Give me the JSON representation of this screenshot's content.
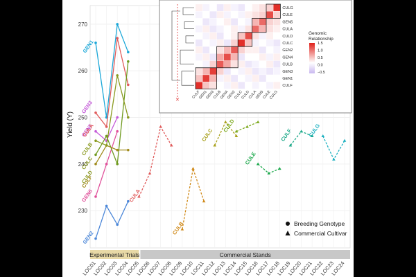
{
  "chart_data": [
    {
      "type": "line",
      "ylabel": "Yield (Y)",
      "ylim": [
        222,
        274
      ],
      "yticks": [
        230,
        240,
        250,
        260,
        270
      ],
      "locations": [
        "LOC01",
        "LOC02",
        "LOC03",
        "LOC04",
        "LOC05",
        "LOC06",
        "LOC07",
        "LOC08",
        "LOC09",
        "LOC10",
        "LOC11",
        "LOC12",
        "LOC13",
        "LOC14",
        "LOC15",
        "LOC16",
        "LOC17",
        "LOC18",
        "LOC19",
        "LOC20",
        "LOC21",
        "LOC22",
        "LOC23",
        "LOC24"
      ],
      "bands": [
        {
          "label": "Experimental Trials",
          "from": "LOC01",
          "to": "LOC05",
          "color": "#e8d9a6"
        },
        {
          "label": "Commercial Stands",
          "from": "LOC05",
          "to": "LOC24",
          "color": "#c8c8c8"
        }
      ],
      "legend": {
        "position": "bottom-right",
        "items": [
          {
            "shape": "circle",
            "label": "Breeding Genotype"
          },
          {
            "shape": "triangle",
            "label": "Commercial Cultivar"
          }
        ]
      },
      "series": [
        {
          "name": "GEN1",
          "kind": "genotype",
          "color": "#1aa7d8",
          "points": [
            [
              1,
              266
            ],
            [
              2,
              250
            ],
            [
              3,
              270
            ],
            [
              4,
              264
            ]
          ]
        },
        {
          "name": "GEN3",
          "kind": "genotype",
          "color": "#e05a5a",
          "points": [
            [
              1,
              251
            ],
            [
              2,
              248
            ],
            [
              3,
              267
            ],
            [
              4,
              257
            ]
          ]
        },
        {
          "name": "GEN5",
          "kind": "genotype",
          "color": "#c45ad8",
          "points": [
            [
              1,
              247
            ],
            [
              2,
              245
            ],
            [
              3,
              250
            ]
          ]
        },
        {
          "name": "GEN6",
          "kind": "genotype",
          "color": "#e0509a",
          "points": [
            [
              1,
              233
            ],
            [
              2,
              240
            ],
            [
              3,
              247
            ]
          ]
        },
        {
          "name": "CULB",
          "kind": "genotype",
          "color": "#6f9a1f",
          "points": [
            [
              1,
              242
            ],
            [
              2,
              246
            ],
            [
              3,
              240
            ],
            [
              4,
              262
            ]
          ]
        },
        {
          "name": "CULF",
          "kind": "genotype",
          "color": "#a08a1a",
          "points": [
            [
              1,
              240
            ],
            [
              2,
              244
            ],
            [
              3,
              243
            ],
            [
              4,
              243
            ]
          ]
        },
        {
          "name": "CULE",
          "kind": "genotype",
          "color": "#8a9a20",
          "points": [
            [
              1,
              245
            ],
            [
              2,
              244
            ],
            [
              3,
              259
            ],
            [
              4,
              250
            ]
          ]
        },
        {
          "name": "GEN2",
          "kind": "genotype",
          "color": "#4a86d8",
          "points": [
            [
              1,
              224
            ],
            [
              2,
              231
            ],
            [
              3,
              227
            ],
            [
              4,
              232
            ]
          ]
        },
        {
          "name": "CULA",
          "kind": "cultivar",
          "color": "#e05a5a",
          "points": [
            [
              5,
              233
            ],
            [
              6,
              238
            ],
            [
              7,
              248
            ],
            [
              8,
              244
            ]
          ]
        },
        {
          "name": "CULB",
          "kind": "cultivar",
          "color": "#d08a1a",
          "points": [
            [
              9,
              226
            ],
            [
              10,
              239
            ],
            [
              11,
              232
            ]
          ]
        },
        {
          "name": "CULC",
          "kind": "cultivar",
          "color": "#a8a01a",
          "points": [
            [
              12,
              244
            ],
            [
              13,
              249
            ],
            [
              14,
              246
            ]
          ]
        },
        {
          "name": "CULD",
          "kind": "cultivar",
          "color": "#7aa81a",
          "points": [
            [
              14,
              247
            ],
            [
              15,
              248
            ],
            [
              16,
              249
            ]
          ]
        },
        {
          "name": "CULE",
          "kind": "cultivar",
          "color": "#1aa84a",
          "points": [
            [
              16,
              240
            ],
            [
              17,
              238
            ],
            [
              18,
              239
            ]
          ]
        },
        {
          "name": "CULF",
          "kind": "cultivar",
          "color": "#1aa888",
          "points": [
            [
              19,
              244
            ],
            [
              20,
              247
            ],
            [
              21,
              246
            ]
          ]
        },
        {
          "name": "CULG",
          "kind": "cultivar",
          "color": "#1ab0c0",
          "points": [
            [
              22,
              246
            ],
            [
              23,
              241
            ],
            [
              24,
              245
            ]
          ]
        }
      ],
      "labels": [
        {
          "text": "GEN1",
          "color": "#1aa7d8",
          "at": [
            1.2,
            265
          ]
        },
        {
          "text": "GEN3",
          "color": "#c45ad8",
          "at": [
            1.1,
            252
          ]
        },
        {
          "text": "GEN5",
          "color": "#c45ad8",
          "at": [
            1.1,
            247
          ]
        },
        {
          "text": "CULA",
          "color": "#e05a5a",
          "at": [
            1.2,
            247
          ]
        },
        {
          "text": "CULB",
          "color": "#8a9a20",
          "at": [
            1.1,
            243
          ]
        },
        {
          "text": "CULC",
          "color": "#8a9a20",
          "at": [
            1.1,
            240
          ]
        },
        {
          "text": "CULD",
          "color": "#8a9a20",
          "at": [
            1.1,
            237
          ]
        },
        {
          "text": "CULF",
          "color": "#a08a1a",
          "at": [
            1.1,
            236
          ]
        },
        {
          "text": "GEN6",
          "color": "#e0509a",
          "at": [
            1.1,
            233
          ]
        },
        {
          "text": "GEN2",
          "color": "#4a86d8",
          "at": [
            1.2,
            224
          ]
        },
        {
          "text": "CULA",
          "color": "#e05a5a",
          "at": [
            5.5,
            233
          ]
        },
        {
          "text": "CULB",
          "color": "#d08a1a",
          "at": [
            9.5,
            226
          ]
        },
        {
          "text": "CULC",
          "color": "#a8a01a",
          "at": [
            12.2,
            246
          ]
        },
        {
          "text": "CULD",
          "color": "#7aa81a",
          "at": [
            14.2,
            248
          ]
        },
        {
          "text": "CULE",
          "color": "#1aa84a",
          "at": [
            16.2,
            241
          ]
        },
        {
          "text": "CULF",
          "color": "#1aa888",
          "at": [
            19.5,
            246
          ]
        },
        {
          "text": "CULG",
          "color": "#1ab0c0",
          "at": [
            22.1,
            247
          ]
        }
      ]
    },
    {
      "type": "heatmap",
      "title": "Genomic Relationship",
      "colorbar": {
        "ticks": [
          1.5,
          1.0,
          0.5,
          0.0,
          -0.5
        ],
        "low": "#c9b8f0",
        "mid": "#ffffff",
        "high": "#e0201a"
      },
      "row_labels": [
        "CULG",
        "CULE",
        "GEN5",
        "CULA",
        "CULD",
        "CULC",
        "GEN2",
        "GEN4",
        "CULB",
        "GEN3",
        "GEN1",
        "CULF"
      ],
      "col_labels": [
        "CULF",
        "GEN1",
        "GEN3",
        "CULB",
        "GEN4",
        "GEN2",
        "CULC",
        "CULD",
        "CULA",
        "GEN5",
        "CULE",
        "CULG"
      ],
      "values": [
        [
          0.1,
          -0.1,
          0.0,
          -0.2,
          0.1,
          -0.1,
          -0.2,
          0.0,
          0.1,
          0.2,
          0.3,
          1.4
        ],
        [
          -0.1,
          0.0,
          -0.2,
          0.1,
          -0.1,
          0.0,
          -0.1,
          0.1,
          0.2,
          0.3,
          1.2,
          0.3
        ],
        [
          0.0,
          -0.2,
          -0.1,
          0.0,
          0.1,
          -0.2,
          0.0,
          -0.1,
          0.5,
          1.0,
          0.3,
          0.2
        ],
        [
          -0.1,
          0.1,
          -0.2,
          -0.1,
          0.0,
          0.1,
          -0.1,
          0.2,
          1.0,
          0.5,
          0.2,
          0.1
        ],
        [
          0.0,
          -0.1,
          0.1,
          -0.2,
          0.0,
          0.1,
          0.4,
          1.2,
          0.2,
          -0.1,
          0.1,
          0.0
        ],
        [
          -0.2,
          0.0,
          -0.1,
          0.1,
          -0.2,
          0.3,
          1.4,
          0.4,
          -0.1,
          0.0,
          -0.1,
          -0.2
        ],
        [
          0.1,
          -0.2,
          0.0,
          0.2,
          0.5,
          1.1,
          0.3,
          0.1,
          0.1,
          -0.2,
          0.0,
          -0.1
        ],
        [
          -0.1,
          0.1,
          -0.2,
          0.6,
          1.2,
          0.5,
          -0.2,
          0.0,
          0.0,
          0.1,
          -0.1,
          0.1
        ],
        [
          0.0,
          -0.1,
          0.3,
          1.1,
          0.6,
          0.2,
          0.1,
          -0.2,
          -0.1,
          0.0,
          0.1,
          -0.2
        ],
        [
          0.2,
          0.5,
          1.3,
          0.3,
          -0.2,
          0.0,
          -0.1,
          0.1,
          -0.2,
          -0.1,
          -0.2,
          -0.1
        ],
        [
          0.4,
          1.3,
          0.5,
          -0.1,
          0.1,
          -0.2,
          0.0,
          -0.1,
          0.1,
          -0.2,
          0.0,
          0.0
        ],
        [
          1.4,
          0.4,
          0.2,
          0.0,
          -0.1,
          0.1,
          -0.2,
          0.0,
          -0.1,
          0.0,
          -0.1,
          0.1
        ]
      ],
      "blocks": [
        [
          0,
          1
        ],
        [
          2,
          3
        ],
        [
          4,
          5
        ],
        [
          6,
          8
        ],
        [
          9,
          11
        ]
      ]
    }
  ]
}
